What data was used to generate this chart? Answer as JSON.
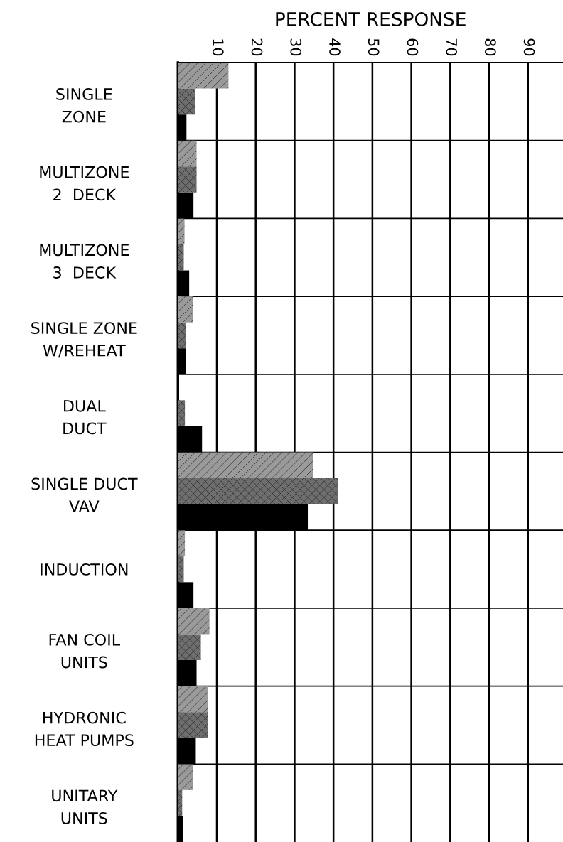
{
  "chart_data": {
    "type": "bar",
    "orientation": "horizontal",
    "xlabel": "PERCENT RESPONSE",
    "categories": [
      "SINGLE\nZONE",
      "MULTIZONE\n2  DECK",
      "MULTIZONE\n3  DECK",
      "SINGLE ZONE\nW/REHEAT",
      "DUAL\nDUCT",
      "SINGLE DUCT\nVAV",
      "INDUCTION",
      "FAN COIL\nUNITS",
      "HYDRONIC\nHEAT PUMPS",
      "UNITARY\nUNITS"
    ],
    "series": [
      {
        "color": "#9a9a9a",
        "values": [
          13,
          4.8,
          1.7,
          3.8,
          0,
          34.7,
          1.8,
          8.1,
          7.7,
          3.8
        ]
      },
      {
        "color": "#6e6e6e",
        "values": [
          4.4,
          4.8,
          1.5,
          2,
          1.8,
          41.1,
          1.5,
          5.9,
          7.8,
          1.1
        ]
      },
      {
        "color": "#000000",
        "values": [
          2.2,
          4.0,
          2.9,
          2,
          6.2,
          33.4,
          4.0,
          4.8,
          4.6,
          1.3
        ]
      }
    ],
    "xlim": [
      0,
      99
    ],
    "xticks": [
      10,
      20,
      30,
      40,
      50,
      60,
      70,
      80,
      90
    ],
    "grid": true
  }
}
